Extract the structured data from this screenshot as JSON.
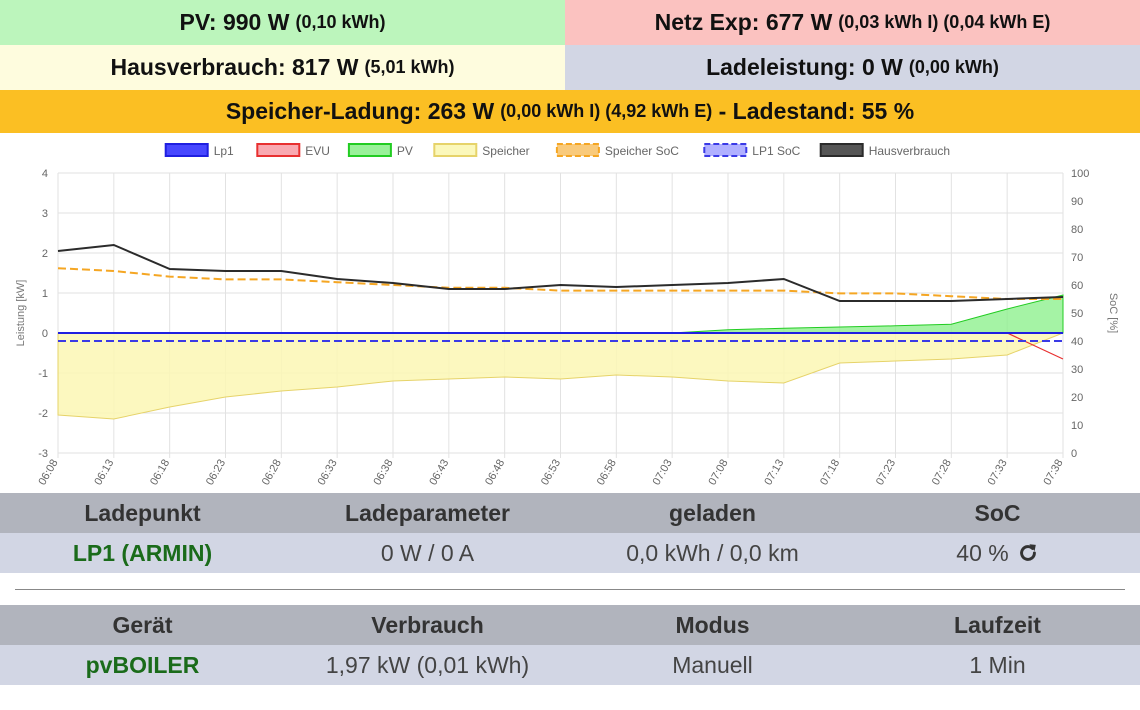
{
  "tiles": {
    "pv": {
      "main": "PV: 990 W",
      "sub": "(0,10 kWh)",
      "color": "#bcf5bc"
    },
    "grid": {
      "main": "Netz Exp: 677 W",
      "sub": "(0,03 kWh I) (0,04 kWh E)",
      "color": "#fbc2c0"
    },
    "house": {
      "main": "Hausverbrauch: 817 W",
      "sub": "(5,01 kWh)",
      "color": "#fefcde"
    },
    "charge": {
      "main": "Ladeleistung: 0 W",
      "sub": "(0,00 kWh)",
      "color": "#d2d6e4"
    },
    "battery": {
      "main": "Speicher-Ladung: 263 W",
      "sub": "(0,00 kWh I) (4,92 kWh E)",
      "tail": " - Ladestand: 55 %",
      "color": "#fbbf23"
    }
  },
  "chart_data": {
    "type": "line",
    "legend_position": "top",
    "legend": [
      {
        "name": "Lp1",
        "color": "#1f1fe0",
        "fill": "#3333ff",
        "dashed": false
      },
      {
        "name": "EVU",
        "color": "#e83030",
        "fill": "#f8a0a8",
        "dashed": false
      },
      {
        "name": "PV",
        "color": "#22cc22",
        "fill": "#8ef08e",
        "dashed": false
      },
      {
        "name": "Speicher",
        "color": "#e6d36a",
        "fill": "#fbf7b4",
        "dashed": false
      },
      {
        "name": "Speicher SoC",
        "color": "#f5a623",
        "fill": "#f5a623",
        "dashed": true
      },
      {
        "name": "LP1 SoC",
        "color": "#3a3ae6",
        "fill": "#7b7bff",
        "dashed": true
      },
      {
        "name": "Hausverbrauch",
        "color": "#2b2b2b",
        "fill": "#444444",
        "dashed": false
      }
    ],
    "ylabel": "Leistung [kW]",
    "y2label": "SoC [%]",
    "ylim": [
      -3,
      4
    ],
    "y2lim": [
      0,
      100
    ],
    "yticks": [
      "4",
      "3",
      "2",
      "1",
      "0",
      "-1",
      "-2",
      "-3"
    ],
    "y2ticks": [
      "100",
      "90",
      "80",
      "70",
      "60",
      "50",
      "40",
      "30",
      "20",
      "10",
      "0"
    ],
    "grid": true,
    "x": [
      "06:08",
      "06:13",
      "06:18",
      "06:23",
      "06:28",
      "06:33",
      "06:38",
      "06:43",
      "06:48",
      "06:53",
      "06:58",
      "07:03",
      "07:08",
      "07:13",
      "07:18",
      "07:23",
      "07:28",
      "07:33",
      "07:38"
    ],
    "series": [
      {
        "name": "Hausverbrauch",
        "values": [
          2.05,
          2.2,
          1.6,
          1.55,
          1.55,
          1.35,
          1.25,
          1.1,
          1.1,
          1.2,
          1.15,
          1.2,
          1.25,
          1.35,
          0.8,
          0.8,
          0.8,
          0.85,
          0.9
        ]
      },
      {
        "name": "Speicher",
        "values": [
          -2.05,
          -2.15,
          -1.85,
          -1.6,
          -1.45,
          -1.35,
          -1.2,
          -1.15,
          -1.1,
          -1.15,
          -1.05,
          -1.1,
          -1.2,
          -1.25,
          -0.75,
          -0.7,
          -0.65,
          -0.55,
          0.0
        ]
      },
      {
        "name": "PV",
        "values": [
          0,
          0,
          0,
          0,
          0,
          0,
          0,
          0,
          0,
          0,
          0,
          0,
          0.08,
          0.12,
          0.15,
          0.18,
          0.22,
          0.6,
          0.95
        ]
      },
      {
        "name": "EVU",
        "values": [
          0,
          0,
          0,
          0,
          0,
          0,
          0,
          0,
          0,
          0,
          0,
          0,
          0,
          0,
          0,
          0,
          0,
          0,
          -0.65
        ]
      },
      {
        "name": "Lp1",
        "values": [
          0,
          0,
          0,
          0,
          0,
          0,
          0,
          0,
          0,
          0,
          0,
          0,
          0,
          0,
          0,
          0,
          0,
          0,
          0
        ]
      },
      {
        "name": "Speicher SoC",
        "values": [
          66,
          65,
          63,
          62,
          62,
          61,
          60,
          59,
          59,
          58,
          58,
          58,
          58,
          58,
          57,
          57,
          56,
          55,
          55
        ]
      },
      {
        "name": "LP1 SoC",
        "values": [
          40,
          40,
          40,
          40,
          40,
          40,
          40,
          40,
          40,
          40,
          40,
          40,
          40,
          40,
          40,
          40,
          40,
          40,
          40
        ]
      }
    ]
  },
  "ladepunkt_table": {
    "headers": [
      "Ladepunkt",
      "Ladeparameter",
      "geladen",
      "SoC"
    ],
    "rows": [
      {
        "name": "LP1 (ARMIN)",
        "params": "0 W / 0 A",
        "charged": "0,0 kWh / 0,0 km",
        "soc": "40 %",
        "icon": "refresh-icon"
      }
    ]
  },
  "device_table": {
    "headers": [
      "Gerät",
      "Verbrauch",
      "Modus",
      "Laufzeit"
    ],
    "rows": [
      {
        "name": "pvBOILER",
        "usage": "1,97 kW (0,01 kWh)",
        "mode": "Manuell",
        "runtime": "1 Min"
      }
    ]
  }
}
